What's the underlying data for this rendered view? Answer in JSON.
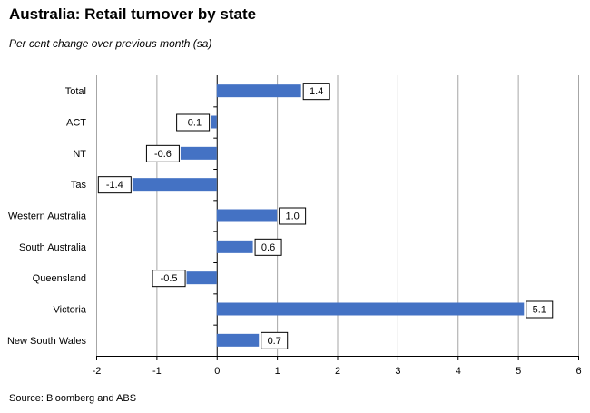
{
  "title": "Australia: Retail turnover by state",
  "subtitle": "Per cent change over previous month (sa)",
  "source": "Source: Bloomberg and ABS",
  "colors": {
    "bar": "#4472C4",
    "grid": "#a6a6a6",
    "axis": "#000000"
  },
  "chart_data": {
    "type": "bar",
    "orientation": "horizontal",
    "categories": [
      "Total",
      "ACT",
      "NT",
      "Tas",
      "Western Australia",
      "South Australia",
      "Queensland",
      "Victoria",
      "New South Wales"
    ],
    "values": [
      1.4,
      -0.1,
      -0.6,
      -1.4,
      1.0,
      0.6,
      -0.5,
      5.1,
      0.7
    ],
    "data_labels": [
      "1.4",
      "-0.1",
      "-0.6",
      "-1.4",
      "1.0",
      "0.6",
      "-0.5",
      "5.1",
      "0.7"
    ],
    "xlim": [
      -2,
      6
    ],
    "xticks": [
      "-2",
      "-1",
      "0",
      "1",
      "2",
      "3",
      "4",
      "5",
      "6"
    ],
    "grid": "vertical",
    "legend": "none"
  }
}
